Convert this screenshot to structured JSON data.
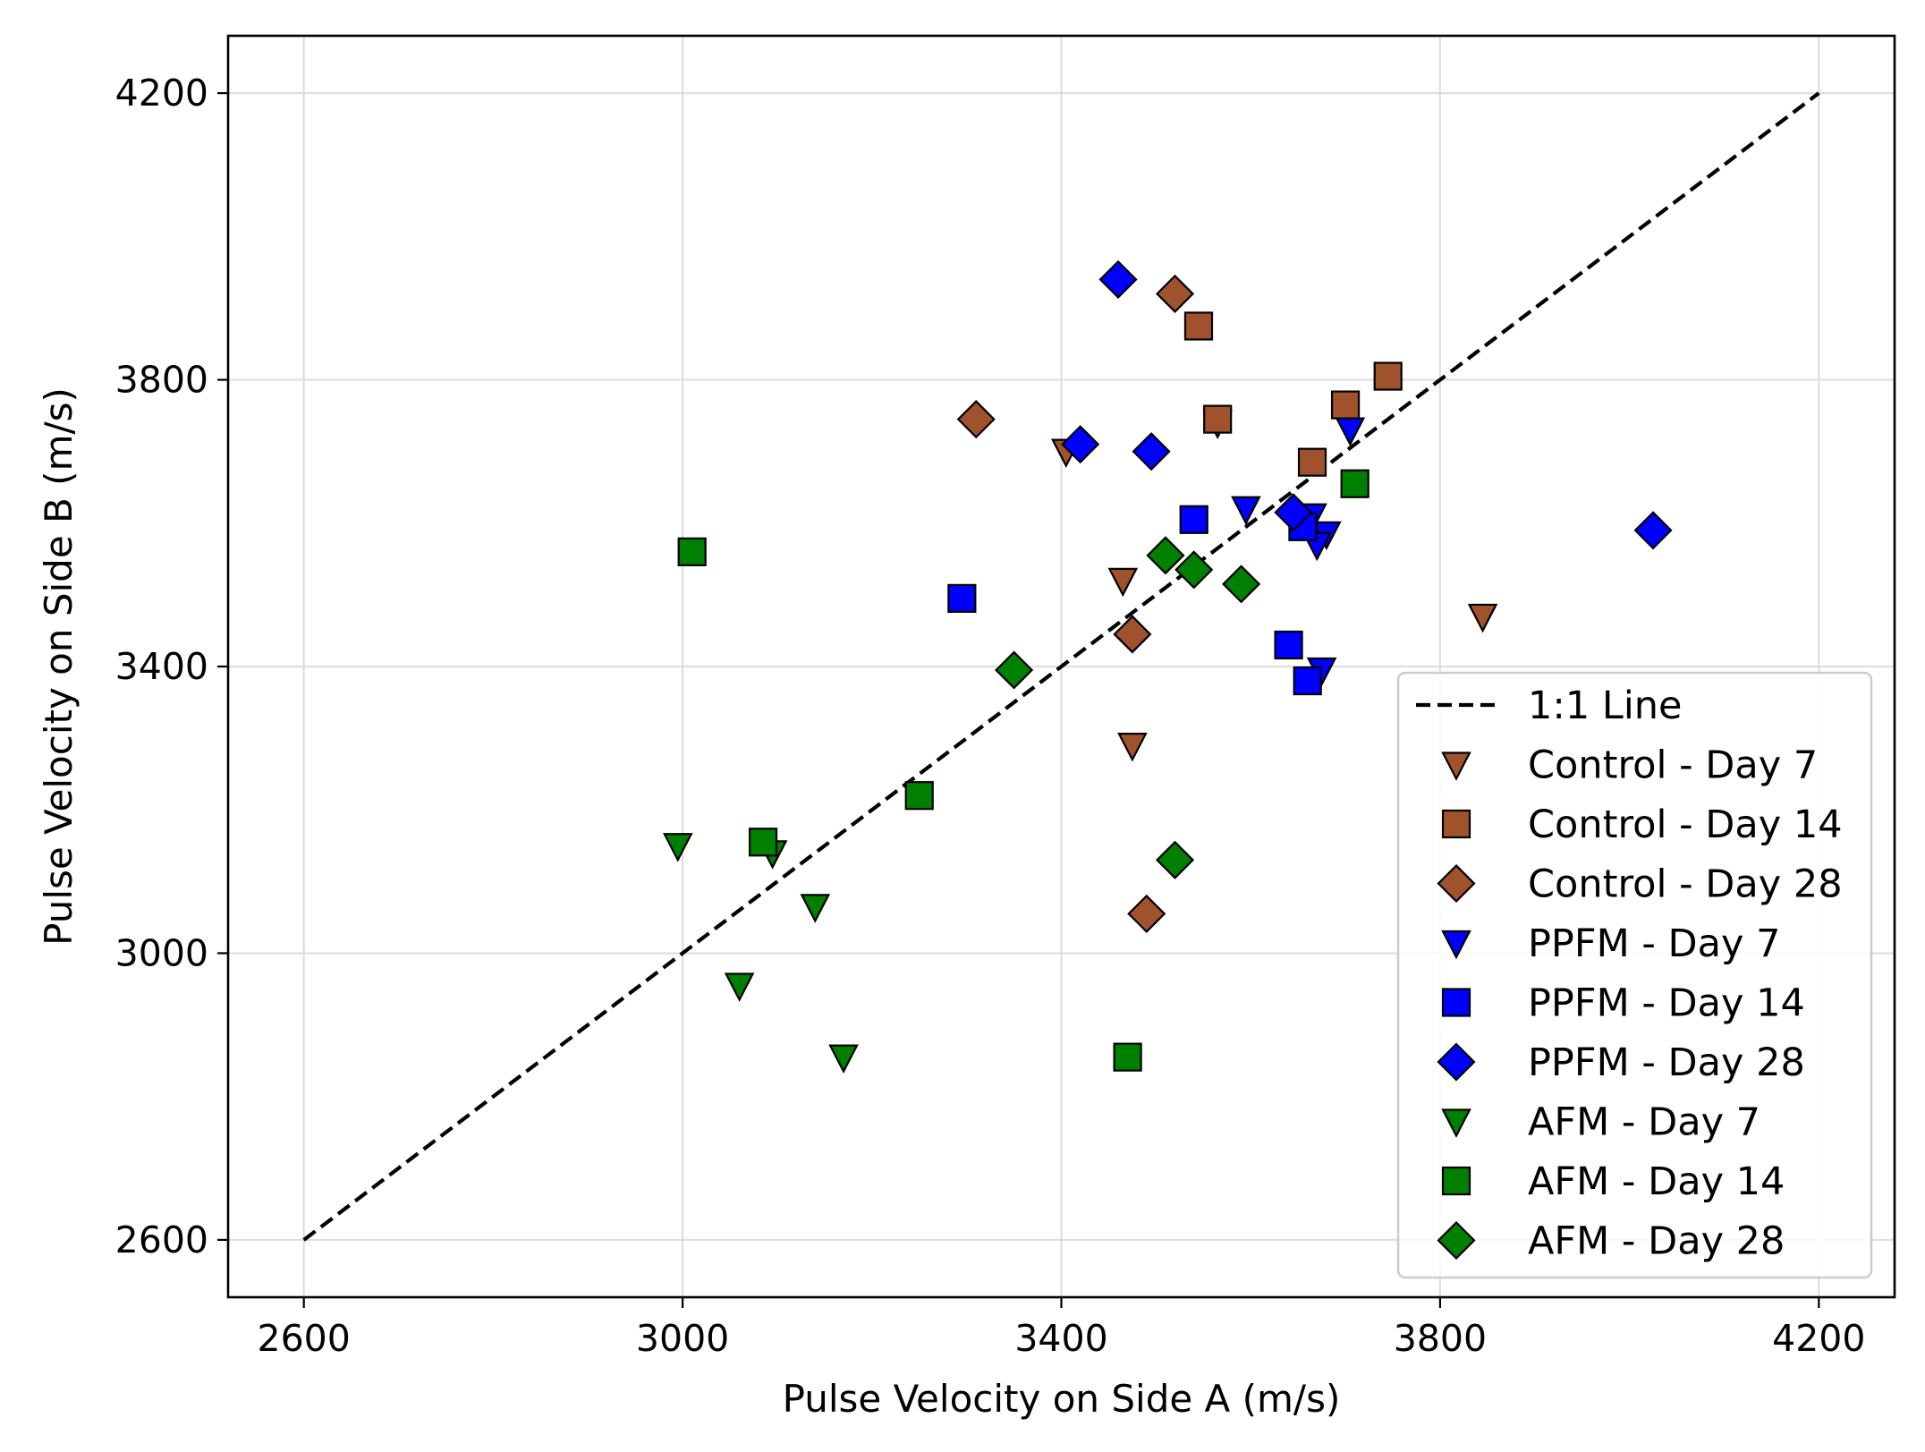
{
  "chart_data": {
    "type": "scatter",
    "title": "",
    "xlabel": "Pulse Velocity on Side A (m/s)",
    "ylabel": "Pulse Velocity on Side B (m/s)",
    "xlim": [
      2520,
      4280
    ],
    "ylim": [
      2520,
      4280
    ],
    "xticks": [
      2600,
      3000,
      3400,
      3800,
      4200
    ],
    "yticks": [
      2600,
      3000,
      3400,
      3800,
      4200
    ],
    "grid": true,
    "legend_position": "lower-right",
    "colors": {
      "control": "#a0522d",
      "ppfm": "#0000ff",
      "afm": "#008000",
      "line": "#000000"
    },
    "reference_line": {
      "name": "1:1 Line",
      "x": [
        2600,
        4200
      ],
      "y": [
        2600,
        4200
      ]
    },
    "series": [
      {
        "name": "Control - Day 7",
        "marker": "triangle-down",
        "color": "#a0522d",
        "points": [
          [
            3405,
            3700
          ],
          [
            3565,
            3740
          ],
          [
            3465,
            3520
          ],
          [
            3475,
            3290
          ],
          [
            3845,
            3470
          ]
        ]
      },
      {
        "name": "Control - Day 14",
        "marker": "square",
        "color": "#a0522d",
        "points": [
          [
            3545,
            3875
          ],
          [
            3745,
            3805
          ],
          [
            3700,
            3765
          ],
          [
            3565,
            3745
          ],
          [
            3665,
            3685
          ]
        ]
      },
      {
        "name": "Control - Day 28",
        "marker": "diamond",
        "color": "#a0522d",
        "points": [
          [
            3520,
            3920
          ],
          [
            3310,
            3745
          ],
          [
            3475,
            3445
          ],
          [
            3490,
            3055
          ]
        ]
      },
      {
        "name": "PPFM - Day 7",
        "marker": "triangle-down",
        "color": "#0000ff",
        "points": [
          [
            3705,
            3730
          ],
          [
            3595,
            3620
          ],
          [
            3665,
            3610
          ],
          [
            3680,
            3585
          ],
          [
            3670,
            3570
          ],
          [
            3675,
            3395
          ]
        ]
      },
      {
        "name": "PPFM - Day 14",
        "marker": "square",
        "color": "#0000ff",
        "points": [
          [
            3540,
            3605
          ],
          [
            3655,
            3595
          ],
          [
            3295,
            3495
          ],
          [
            3640,
            3430
          ],
          [
            3660,
            3380
          ]
        ]
      },
      {
        "name": "PPFM - Day 28",
        "marker": "diamond",
        "color": "#0000ff",
        "points": [
          [
            3460,
            3940
          ],
          [
            3420,
            3710
          ],
          [
            3495,
            3700
          ],
          [
            3645,
            3615
          ],
          [
            4025,
            3590
          ]
        ]
      },
      {
        "name": "AFM - Day 7",
        "marker": "triangle-down",
        "color": "#008000",
        "points": [
          [
            2995,
            3150
          ],
          [
            3095,
            3140
          ],
          [
            3140,
            3065
          ],
          [
            3060,
            2955
          ],
          [
            3170,
            2855
          ]
        ]
      },
      {
        "name": "AFM - Day 14",
        "marker": "square",
        "color": "#008000",
        "points": [
          [
            3010,
            3560
          ],
          [
            3085,
            3155
          ],
          [
            3250,
            3220
          ],
          [
            3470,
            2855
          ],
          [
            3710,
            3655
          ]
        ]
      },
      {
        "name": "AFM - Day 28",
        "marker": "diamond",
        "color": "#008000",
        "points": [
          [
            3510,
            3555
          ],
          [
            3540,
            3535
          ],
          [
            3590,
            3515
          ],
          [
            3350,
            3395
          ],
          [
            3520,
            3130
          ]
        ]
      }
    ]
  }
}
